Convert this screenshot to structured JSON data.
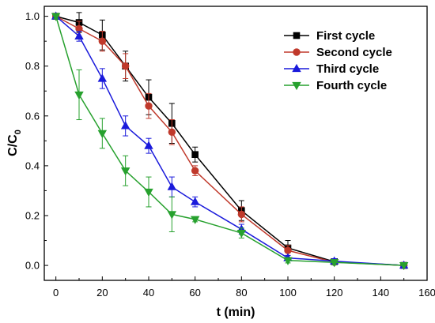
{
  "chart_data": {
    "type": "line",
    "xlabel": "t (min)",
    "ylabel": "C/C0",
    "ylabel_main": "C/C",
    "ylabel_sub": "0",
    "xlim": [
      -5,
      160
    ],
    "ylim": [
      -0.06,
      1.04
    ],
    "xticks": [
      0,
      20,
      40,
      60,
      80,
      100,
      120,
      140,
      160
    ],
    "yticks": [
      0.0,
      0.2,
      0.4,
      0.6,
      0.8,
      1.0
    ],
    "xtick_labels": [
      "0",
      "20",
      "40",
      "60",
      "80",
      "100",
      "120",
      "140",
      "160"
    ],
    "ytick_labels": [
      "0.0",
      "0.2",
      "0.4",
      "0.6",
      "0.8",
      "1.0"
    ],
    "legend_position": "top-right",
    "grid": false,
    "series": [
      {
        "name": "First cycle",
        "color": "#000000",
        "marker": "square",
        "x": [
          0,
          10,
          20,
          30,
          40,
          50,
          60,
          80,
          100,
          120,
          150
        ],
        "y": [
          1.0,
          0.975,
          0.925,
          0.8,
          0.675,
          0.57,
          0.445,
          0.22,
          0.07,
          0.015,
          0.0
        ],
        "err": [
          0.01,
          0.04,
          0.06,
          0.06,
          0.07,
          0.08,
          0.03,
          0.04,
          0.03,
          0.01,
          0.005
        ]
      },
      {
        "name": "Second cycle",
        "color": "#c0392b",
        "marker": "circle",
        "x": [
          0,
          10,
          20,
          30,
          40,
          50,
          60,
          80,
          100,
          120,
          150
        ],
        "y": [
          1.0,
          0.95,
          0.9,
          0.8,
          0.64,
          0.535,
          0.38,
          0.205,
          0.06,
          0.013,
          0.0
        ],
        "err": [
          0.01,
          0.03,
          0.04,
          0.05,
          0.05,
          0.05,
          0.02,
          0.03,
          0.02,
          0.01,
          0.005
        ]
      },
      {
        "name": "Third cycle",
        "color": "#1a1adb",
        "marker": "triangle-up",
        "x": [
          0,
          10,
          20,
          30,
          40,
          50,
          60,
          80,
          100,
          120,
          150
        ],
        "y": [
          1.0,
          0.92,
          0.75,
          0.56,
          0.48,
          0.315,
          0.255,
          0.145,
          0.03,
          0.017,
          0.0
        ],
        "err": [
          0.01,
          0.02,
          0.04,
          0.04,
          0.03,
          0.04,
          0.02,
          0.02,
          0.01,
          0.01,
          0.005
        ]
      },
      {
        "name": "Fourth cycle",
        "color": "#27a12e",
        "marker": "triangle-down",
        "x": [
          0,
          10,
          20,
          30,
          40,
          50,
          60,
          80,
          100,
          120,
          150
        ],
        "y": [
          1.0,
          0.685,
          0.53,
          0.38,
          0.295,
          0.205,
          0.185,
          0.13,
          0.02,
          0.012,
          0.0
        ],
        "err": [
          0.01,
          0.1,
          0.06,
          0.06,
          0.06,
          0.07,
          0.01,
          0.02,
          0.01,
          0.01,
          0.005
        ]
      }
    ]
  }
}
